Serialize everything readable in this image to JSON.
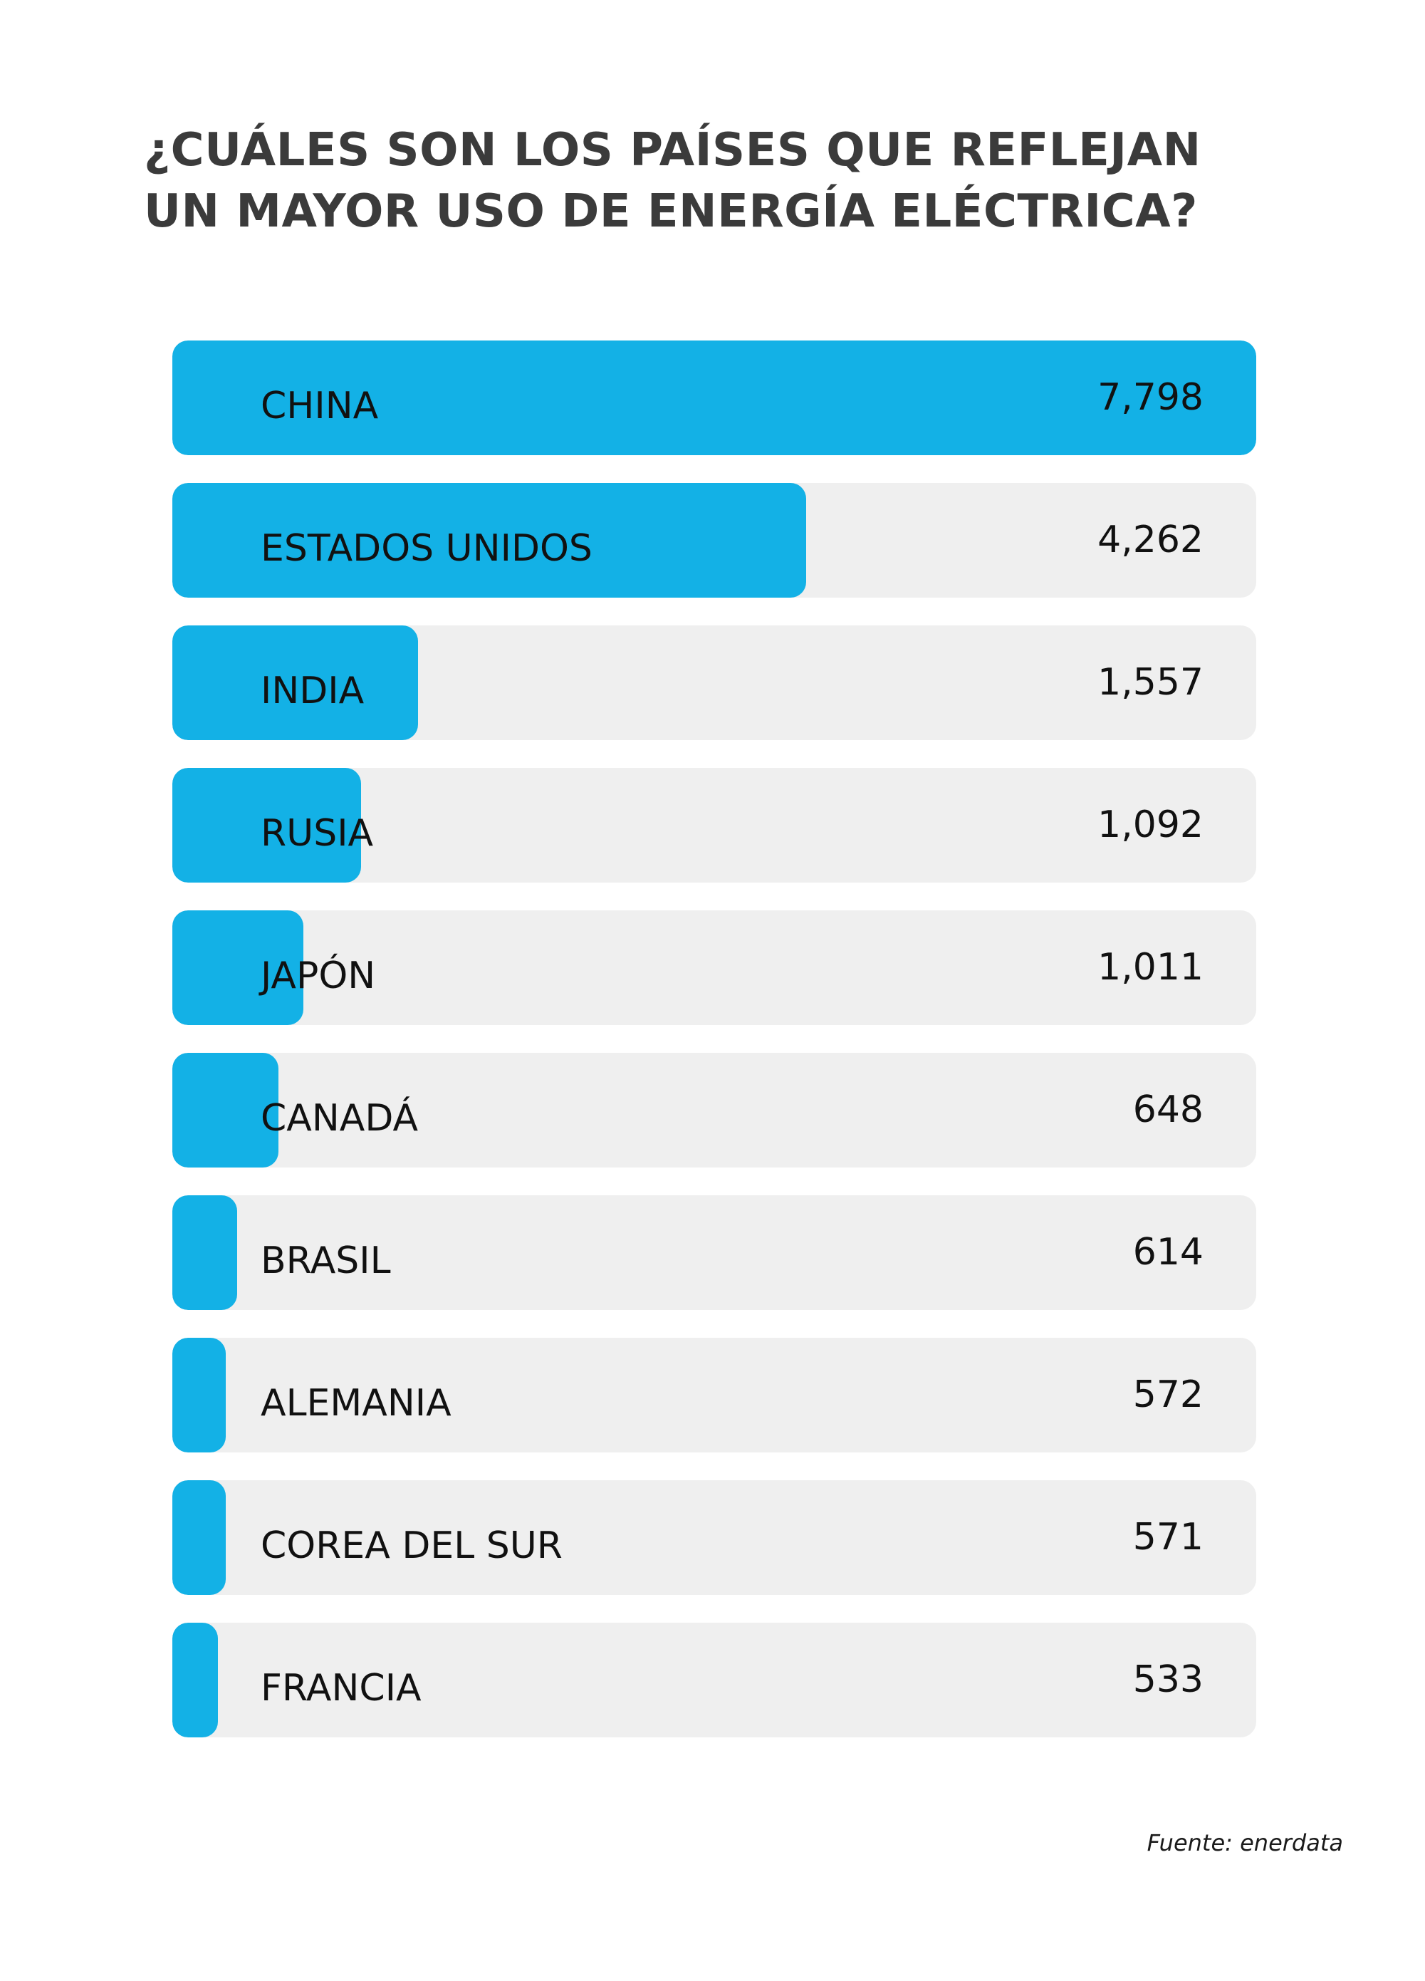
{
  "title_lines": [
    "¿CUÁLES SON LOS PAÍSES QUE REFLEJAN",
    "UN MAYOR USO DE ENERGÍA ELÉCTRICA?"
  ],
  "source": "Fuente: enerdata",
  "colors": {
    "bar": "#13b1e6",
    "track": "#efefef",
    "title": "#3b3b3b",
    "text": "#111111"
  },
  "chart_data": {
    "type": "bar",
    "orientation": "horizontal",
    "title": "¿CUÁLES SON LOS PAÍSES QUE REFLEJAN UN MAYOR USO DE ENERGÍA ELÉCTRICA?",
    "categories": [
      "CHINA",
      "ESTADOS UNIDOS",
      "INDIA",
      "RUSIA",
      "JAPÓN",
      "CANADÁ",
      "BRASIL",
      "ALEMANIA",
      "COREA DEL SUR",
      "FRANCIA"
    ],
    "values": [
      7798,
      4262,
      1557,
      1092,
      1011,
      648,
      614,
      572,
      571,
      533
    ],
    "value_labels": [
      "7,798",
      "4,262",
      "1,557",
      "1,092",
      "1,011",
      "648",
      "614",
      "572",
      "571",
      "533"
    ],
    "fill_fractions": [
      1.0,
      0.585,
      0.227,
      0.174,
      0.121,
      0.098,
      0.06,
      0.049,
      0.049,
      0.042
    ],
    "xlabel": "",
    "ylabel": "",
    "grid": false,
    "legend": "none"
  }
}
